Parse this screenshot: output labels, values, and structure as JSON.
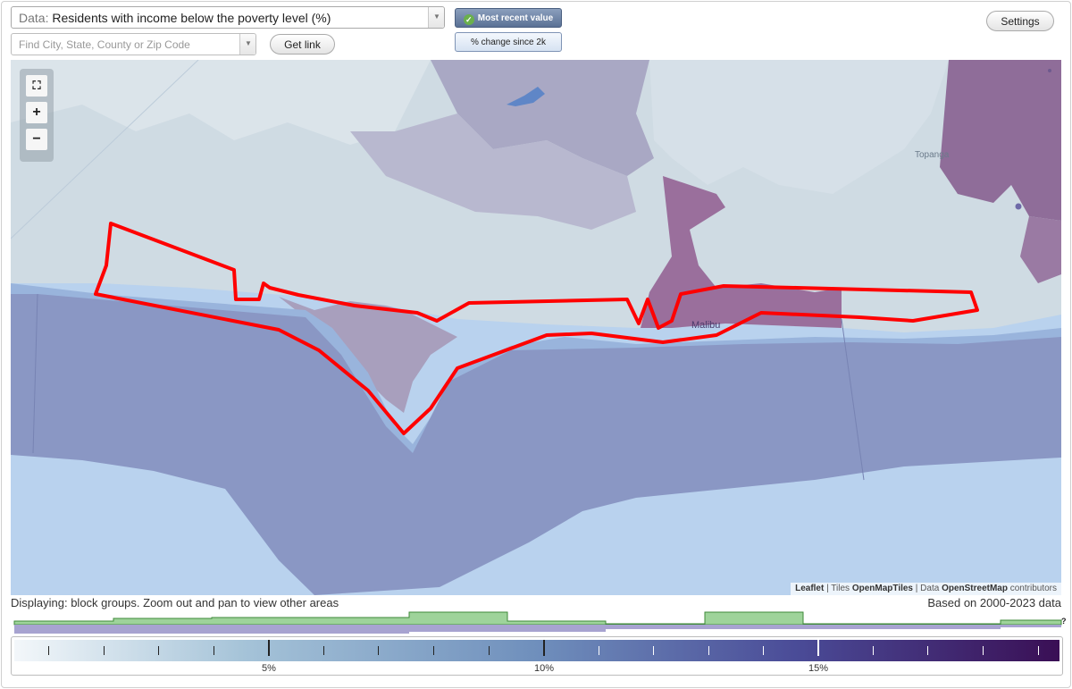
{
  "controls": {
    "data_label": "Data:",
    "data_value": "Residents with income below the poverty level (%)",
    "search_placeholder": "Find City, State, County or Zip Code",
    "get_link": "Get link",
    "mode_recent": "Most recent value",
    "mode_change": "% change since 2k",
    "settings": "Settings"
  },
  "map": {
    "places": [
      "Topanga",
      "Malibu"
    ],
    "attribution": {
      "leaflet": "Leaflet",
      "sep1": " | Tiles ",
      "tiles": "OpenMapTiles",
      "sep2": " | Data ",
      "data": "OpenStreetMap",
      "tail": " contributors"
    },
    "zoom": {
      "fullscreen": "⛶",
      "in": "+",
      "out": "−"
    },
    "colors": {
      "ocean": "#b9d2ee",
      "water_deep": "#8a97c4",
      "highlight_outline": "#ff0000",
      "high_poverty": "#9a6f9c",
      "mid_poverty": "#a9a8c4",
      "low_poverty": "#cfdae4"
    }
  },
  "footer": {
    "displaying": "Displaying: block groups. Zoom out and pan to view other areas",
    "based_on": "Based on 2000-2023 data"
  },
  "legend": {
    "labels": [
      "5%",
      "10%",
      "15%"
    ],
    "help": "?",
    "histogram_colors": {
      "green": "#9ed39a",
      "purple": "#a7a3d0"
    }
  }
}
